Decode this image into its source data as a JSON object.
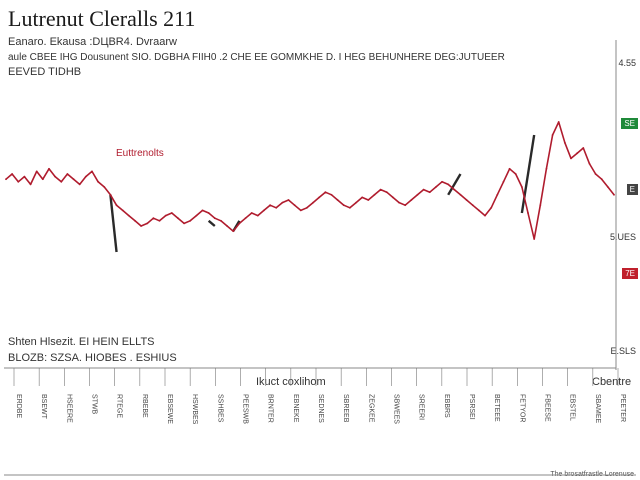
{
  "title": "Lutrenut Cleralls 211",
  "subtitle_1": "Eanaro. Ekausa :DЦBR4. Dvraarw",
  "subtitle_2": "aule CBEE IHG Dousunent SIO. DGBHA FIIH0 .2 CHE EE GOMMKHE D. I HEG BEHUNHERE DEG:JUTUEER",
  "subtitle_3": "EEVED TIDHB",
  "bottom_note_1": "Shten Hlsezit. EI HEIN ELLTS",
  "bottom_note_2": "BLOZB: SZSA. HIOBES . ESHIUS",
  "xaxis_title": "Ikuct coxlihom",
  "legend_top_right": "Cbentre",
  "footer": "The brosatfrastle Lorenuse",
  "series_label": "Euttrenolts",
  "price_labels": {
    "top": "4.55",
    "mid": "5.UES",
    "bottom": "E.SLS"
  },
  "badges": {
    "green": "SE",
    "dark": "E",
    "red": "7E"
  },
  "colors": {
    "series": "#b01c2e",
    "connector": "#2a2a2a",
    "green_badge": "#1f8a3a",
    "dark_badge": "#444444",
    "red_badge": "#c0202c"
  },
  "chart_data": {
    "type": "line",
    "title": "Lutrenut Cleralls 211",
    "xlabel": "Ikuct coxlihom",
    "ylabel": "",
    "ylim": [
      0,
      100
    ],
    "grid": false,
    "series": [
      {
        "name": "Euttrenolts",
        "x": [
          0,
          1,
          2,
          3,
          4,
          5,
          6,
          7,
          8,
          9,
          10,
          11,
          12,
          13,
          14,
          15,
          16,
          17,
          18,
          19,
          20,
          21,
          22,
          23,
          24,
          25,
          26,
          27,
          28,
          29,
          30,
          31,
          32,
          33,
          34,
          35,
          36,
          37,
          38,
          39,
          40,
          41,
          42,
          43,
          44,
          45,
          46,
          47,
          48,
          49,
          50,
          51,
          52,
          53,
          54,
          55,
          56,
          57,
          58,
          59,
          60,
          61,
          62,
          63,
          64,
          65,
          66,
          67,
          68,
          69,
          70,
          71,
          72,
          73,
          74,
          75,
          76,
          77,
          78,
          79,
          80,
          81,
          82,
          83,
          84,
          85,
          86,
          87,
          88,
          89,
          90,
          91,
          92,
          93,
          94,
          95,
          96,
          97,
          98,
          99
        ],
        "y": [
          58,
          60,
          57,
          59,
          56,
          61,
          58,
          62,
          59,
          57,
          60,
          58,
          56,
          59,
          61,
          57,
          55,
          52,
          48,
          46,
          44,
          42,
          40,
          41,
          43,
          42,
          44,
          45,
          43,
          41,
          42,
          44,
          46,
          45,
          43,
          42,
          40,
          38,
          41,
          43,
          45,
          44,
          46,
          48,
          47,
          49,
          50,
          48,
          46,
          47,
          49,
          51,
          53,
          52,
          50,
          48,
          47,
          49,
          51,
          50,
          52,
          54,
          53,
          51,
          49,
          48,
          50,
          52,
          54,
          53,
          55,
          57,
          56,
          54,
          52,
          50,
          48,
          46,
          44,
          47,
          52,
          57,
          62,
          60,
          55,
          45,
          35,
          48,
          62,
          75,
          80,
          72,
          66,
          68,
          70,
          64,
          60,
          58,
          55,
          52
        ]
      }
    ],
    "connectors": [
      {
        "x": [
          17,
          18
        ],
        "y": [
          52,
          30
        ]
      },
      {
        "x": [
          33,
          34
        ],
        "y": [
          42,
          40
        ]
      },
      {
        "x": [
          37,
          38
        ],
        "y": [
          38,
          42
        ]
      },
      {
        "x": [
          72,
          74
        ],
        "y": [
          52,
          60
        ]
      },
      {
        "x": [
          84,
          86
        ],
        "y": [
          45,
          75
        ]
      }
    ],
    "x_tick_labels": [
      "ERDBE",
      "BSEWT",
      "HSEERE",
      "STWB",
      "RTEGE",
      "RBEBE",
      "EBSEWE",
      "HSWBES",
      "SSHBES",
      "PEESWB",
      "BRNTER",
      "EBNEKE",
      "SEDNES",
      "SBREEB",
      "ZEGKEE",
      "SBWEES",
      "SREERI",
      "EBBRS",
      "PSRSEI",
      "BETEEE",
      "FETYOR",
      "FBEESE",
      "EBSTEL",
      "SBAMEE",
      "PEETER"
    ]
  }
}
